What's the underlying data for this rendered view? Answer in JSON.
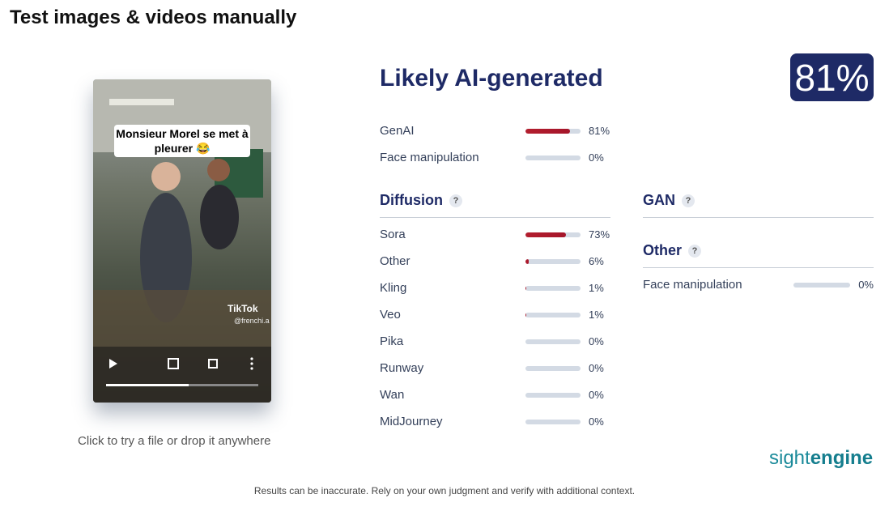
{
  "header": {
    "title": "Test images & videos manually"
  },
  "media": {
    "caption": "Monsieur Morel se met à pleurer 😂",
    "watermark": "TikTok",
    "handle": "@frenchi.a",
    "hint": "Click to try a file or drop it anywhere"
  },
  "result": {
    "verdict": "Likely AI-generated",
    "score": {
      "value": 81,
      "label": "81%"
    },
    "summary": [
      {
        "name": "GenAI",
        "value": 81,
        "label": "81%"
      },
      {
        "name": "Face manipulation",
        "value": 0,
        "label": "0%"
      }
    ],
    "diffusion": {
      "title": "Diffusion",
      "help": "?",
      "rows": [
        {
          "name": "Sora",
          "value": 73,
          "label": "73%"
        },
        {
          "name": "Other",
          "value": 6,
          "label": "6%"
        },
        {
          "name": "Kling",
          "value": 1,
          "label": "1%"
        },
        {
          "name": "Veo",
          "value": 1,
          "label": "1%"
        },
        {
          "name": "Pika",
          "value": 0,
          "label": "0%"
        },
        {
          "name": "Runway",
          "value": 0,
          "label": "0%"
        },
        {
          "name": "Wan",
          "value": 0,
          "label": "0%"
        },
        {
          "name": "MidJourney",
          "value": 0,
          "label": "0%"
        }
      ]
    },
    "gan": {
      "title": "GAN",
      "help": "?"
    },
    "other": {
      "title": "Other",
      "help": "?",
      "rows": [
        {
          "name": "Face manipulation",
          "value": 0,
          "label": "0%"
        }
      ]
    }
  },
  "brand": {
    "light": "sight",
    "bold": "engine"
  },
  "footer": "Results can be inaccurate. Rely on your own judgment and verify with additional context."
}
